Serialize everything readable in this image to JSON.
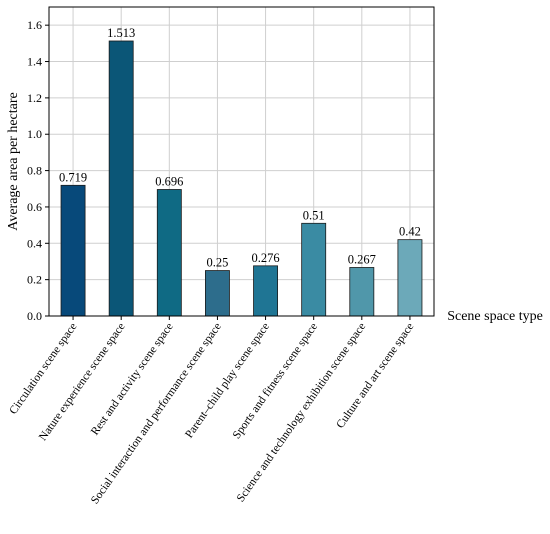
{
  "chart_data": {
    "type": "bar",
    "categories": [
      "Circulation scene space",
      "Nature experience scene space",
      "Rest and activity scene space",
      "Social interaction and performance scene space",
      "Parent–child play scene space",
      "Sports and fitness scene space",
      "Science and technology exhibition scene space",
      "Culture and art scene space"
    ],
    "values": [
      0.719,
      1.513,
      0.696,
      0.25,
      0.276,
      0.51,
      0.267,
      0.42
    ],
    "value_labels": [
      "0.719",
      "1.513",
      "0.696",
      "0.25",
      "0.276",
      "0.51",
      "0.267",
      "0.42"
    ],
    "bar_colors": [
      "#07497a",
      "#0b5677",
      "#0f6a84",
      "#2d6d8c",
      "#1f7594",
      "#3a8ba3",
      "#5097aa",
      "#6ca9b9"
    ],
    "title": "",
    "xlabel": "Scene space type",
    "ylabel": "Average area per hectare",
    "ylim": [
      0,
      1.7
    ],
    "yticks": [
      "0.0",
      "0.2",
      "0.4",
      "0.6",
      "0.8",
      "1.0",
      "1.2",
      "1.4",
      "1.6"
    ],
    "grid": true,
    "legend": "none"
  }
}
